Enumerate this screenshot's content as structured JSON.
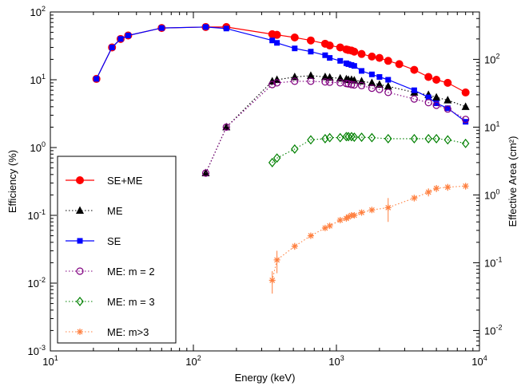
{
  "chart_data": {
    "type": "scatter",
    "xlabel": "Energy (keV)",
    "ylabel": "Efficiency (%)",
    "y2label": "Effective Area (cm²)",
    "xscale": "log",
    "yscale": "log",
    "y2scale": "log",
    "xlim": [
      10,
      10000
    ],
    "ylim": [
      0.001,
      100
    ],
    "y2lim": [
      0.005,
      500
    ],
    "grid": false,
    "legend_position": "bottom-left",
    "x_ticks": [
      {
        "value": 10,
        "base": "10",
        "exp": "1"
      },
      {
        "value": 100,
        "base": "10",
        "exp": "2"
      },
      {
        "value": 1000,
        "base": "10",
        "exp": "3"
      },
      {
        "value": 10000,
        "base": "10",
        "exp": "4"
      }
    ],
    "y_ticks": [
      {
        "value": 0.001,
        "base": "10",
        "exp": "-3"
      },
      {
        "value": 0.01,
        "base": "10",
        "exp": "-2"
      },
      {
        "value": 0.1,
        "base": "10",
        "exp": "-1"
      },
      {
        "value": 1,
        "base": "10",
        "exp": "0"
      },
      {
        "value": 10,
        "base": "10",
        "exp": "1"
      },
      {
        "value": 100,
        "base": "10",
        "exp": "2"
      }
    ],
    "y2_ticks": [
      {
        "value": 0.01,
        "base": "10",
        "exp": "-2"
      },
      {
        "value": 0.1,
        "base": "10",
        "exp": "-1"
      },
      {
        "value": 1,
        "base": "10",
        "exp": "0"
      },
      {
        "value": 10,
        "base": "10",
        "exp": "1"
      },
      {
        "value": 100,
        "base": "10",
        "exp": "2"
      }
    ],
    "series": [
      {
        "name": "SE+ME",
        "color": "#ff0000",
        "marker": "circle-filled",
        "line": "solid",
        "x": [
          21,
          27,
          31,
          35,
          60,
          122,
          170,
          356,
          384,
          511,
          662,
          834,
          898,
          1063,
          1173,
          1213,
          1275,
          1333,
          1500,
          1770,
          2000,
          2300,
          2750,
          3500,
          4400,
          5000,
          6000,
          8000
        ],
        "y": [
          10.3,
          30,
          40,
          45,
          58,
          60,
          60,
          47,
          46,
          42,
          38,
          34,
          32,
          30,
          28,
          27.5,
          27,
          26,
          24,
          22,
          21,
          19,
          17,
          14,
          11,
          10,
          9,
          6.5
        ]
      },
      {
        "name": "ME",
        "color": "#000000",
        "marker": "triangle-filled",
        "line": "dotted",
        "x": [
          122,
          170,
          356,
          384,
          511,
          662,
          834,
          898,
          1063,
          1173,
          1213,
          1275,
          1333,
          1500,
          1770,
          2000,
          2300,
          3500,
          4400,
          5000,
          6000,
          8000
        ],
        "y": [
          0.42,
          2,
          9.5,
          10,
          11,
          11.5,
          11,
          10.8,
          10.5,
          10.2,
          10,
          10,
          9.8,
          9.5,
          9,
          8.5,
          8,
          6.5,
          6,
          5.5,
          5,
          4
        ]
      },
      {
        "name": "SE",
        "color": "#0000ff",
        "marker": "square-filled",
        "line": "solid",
        "x": [
          21,
          27,
          31,
          35,
          60,
          122,
          170,
          356,
          384,
          511,
          662,
          834,
          898,
          1063,
          1173,
          1213,
          1275,
          1333,
          1500,
          1770,
          2000,
          2300,
          3500,
          4400,
          5000,
          6000,
          8000
        ],
        "y": [
          10.3,
          30,
          40,
          45,
          58,
          60,
          57,
          38,
          35,
          29,
          26,
          23,
          21,
          19,
          17.5,
          17,
          16.5,
          16,
          13.5,
          12,
          11,
          10,
          7,
          5.5,
          4.5,
          3.8,
          2.4
        ]
      },
      {
        "name": "ME: m = 2",
        "color": "#800080",
        "marker": "circle-open",
        "line": "dotted",
        "x": [
          122,
          170,
          356,
          384,
          511,
          662,
          834,
          898,
          1063,
          1173,
          1213,
          1275,
          1333,
          1500,
          1770,
          2000,
          2300,
          3500,
          4400,
          5000,
          6000,
          8000
        ],
        "y": [
          0.42,
          2,
          8.5,
          9,
          9.5,
          9.5,
          9.3,
          9.2,
          9,
          8.8,
          8.7,
          8.5,
          8.4,
          8.2,
          7.5,
          7.2,
          6.5,
          5.2,
          4.6,
          4.2,
          3.7,
          2.6
        ]
      },
      {
        "name": "ME: m = 3",
        "color": "#008000",
        "marker": "diamond-open",
        "line": "dotted",
        "x": [
          356,
          384,
          511,
          662,
          834,
          898,
          1063,
          1173,
          1213,
          1275,
          1333,
          1500,
          1770,
          2300,
          3500,
          4400,
          5000,
          6000,
          8000
        ],
        "y": [
          0.6,
          0.7,
          0.95,
          1.3,
          1.35,
          1.4,
          1.4,
          1.45,
          1.45,
          1.45,
          1.42,
          1.42,
          1.4,
          1.35,
          1.35,
          1.35,
          1.35,
          1.3,
          1.15
        ]
      },
      {
        "name": "ME: m>3",
        "color": "#ff8040",
        "marker": "asterisk",
        "line": "dotted",
        "x": [
          356,
          384,
          511,
          662,
          834,
          898,
          1063,
          1173,
          1213,
          1275,
          1333,
          1500,
          1770,
          2300,
          3500,
          4400,
          5000,
          6000,
          8000
        ],
        "y": [
          0.011,
          0.022,
          0.035,
          0.05,
          0.065,
          0.07,
          0.085,
          0.09,
          0.095,
          0.1,
          0.1,
          0.11,
          0.12,
          0.13,
          0.18,
          0.22,
          0.25,
          0.26,
          0.27
        ],
        "yerr": [
          0.004,
          0.008,
          0.004,
          0.005,
          0.005,
          0.005,
          0.006,
          0.006,
          0.006,
          0.006,
          0.006,
          0.006,
          0.008,
          0.05,
          0.02,
          0.03,
          0.03,
          0.03,
          0.03
        ]
      }
    ]
  }
}
